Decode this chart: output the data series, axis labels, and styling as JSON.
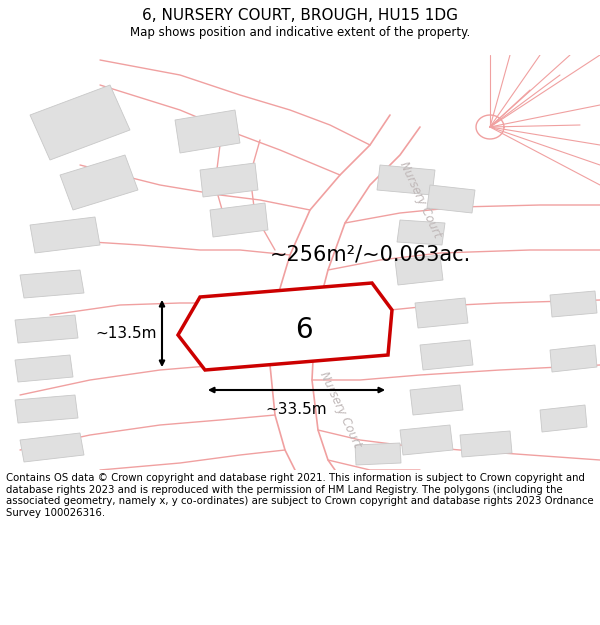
{
  "title": "6, NURSERY COURT, BROUGH, HU15 1DG",
  "subtitle": "Map shows position and indicative extent of the property.",
  "area_label": "~256m²/~0.063ac.",
  "plot_number": "6",
  "dim_width": "~33.5m",
  "dim_height": "~13.5m",
  "bg_color": "#ffffff",
  "road_color": "#f0a0a0",
  "building_color": "#e0e0e0",
  "building_edge": "#c8c8c8",
  "main_plot_color": "#cc0000",
  "road_label_color": "#c0b8b8",
  "footer_text": "Contains OS data © Crown copyright and database right 2021. This information is subject to Crown copyright and database rights 2023 and is reproduced with the permission of HM Land Registry. The polygons (including the associated geometry, namely x, y co-ordinates) are subject to Crown copyright and database rights 2023 Ordnance Survey 100026316."
}
